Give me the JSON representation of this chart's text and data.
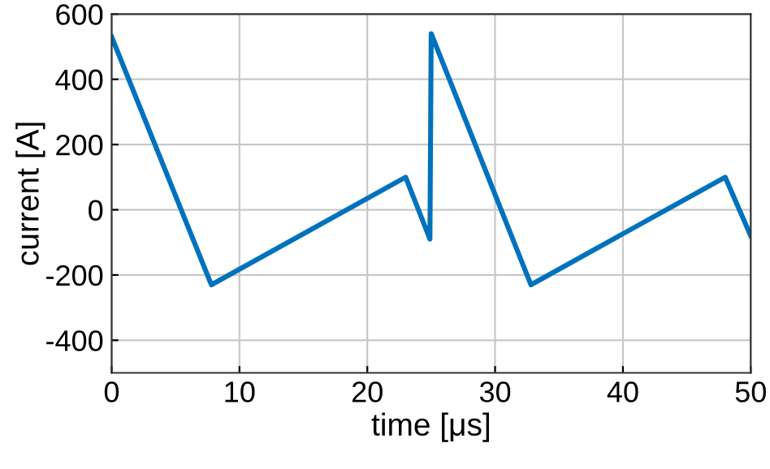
{
  "chart_data": {
    "type": "line",
    "xlabel": "time [μs]",
    "ylabel": "current [A]",
    "x": [
      0,
      7.8,
      23,
      24.9,
      25,
      32.8,
      48,
      50
    ],
    "series": [
      {
        "color": "#0072bd",
        "values": [
          530,
          -230,
          100,
          -90,
          540,
          -230,
          100,
          -80
        ]
      }
    ],
    "xlim": [
      0,
      50
    ],
    "ylim": [
      -500,
      600
    ],
    "xticks": [
      0,
      10,
      20,
      30,
      40,
      50
    ],
    "yticks": [
      -400,
      -200,
      0,
      200,
      400,
      600
    ],
    "grid": true,
    "marker": "none",
    "line_style": "solid"
  }
}
